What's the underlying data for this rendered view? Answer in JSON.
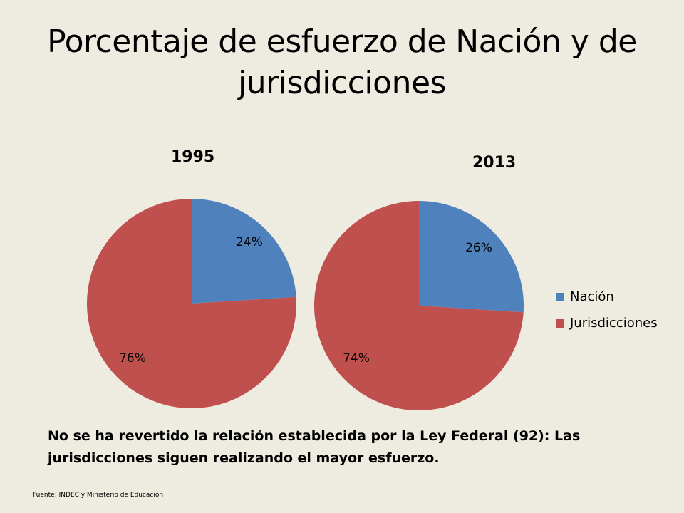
{
  "slide": {
    "title": "Porcentaje de esfuerzo de Nación y de jurisdicciones",
    "note": "No se ha revertido la relación establecida por la Ley Federal (92): Las jurisdicciones siguen realizando el mayor esfuerzo.",
    "source": "Fuente: INDEC y Ministerio de Educación"
  },
  "colors": {
    "nacion": "#4f81bd",
    "jurisdicciones": "#c0504d"
  },
  "chart_data": [
    {
      "type": "pie",
      "title": "1995",
      "categories": [
        "Nación",
        "Jurisdicciones"
      ],
      "values": [
        24,
        76
      ],
      "labels": [
        "24%",
        "76%"
      ]
    },
    {
      "type": "pie",
      "title": "2013",
      "categories": [
        "Nación",
        "Jurisdicciones"
      ],
      "values": [
        26,
        74
      ],
      "labels": [
        "26%",
        "74%"
      ]
    }
  ],
  "legend": {
    "position": "right",
    "items": [
      {
        "label": "Nación"
      },
      {
        "label": "Jurisdicciones"
      }
    ]
  }
}
